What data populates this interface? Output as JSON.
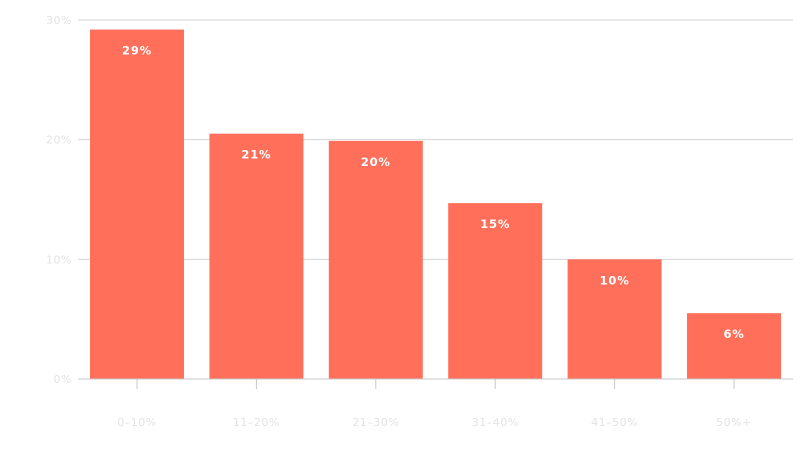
{
  "chart_data": {
    "type": "bar",
    "title": "",
    "xlabel": "",
    "ylabel": "",
    "categories": [
      "0–10%",
      "11–20%",
      "21–30%",
      "31–40%",
      "41–50%",
      "50%+"
    ],
    "values": [
      29.2,
      20.5,
      19.9,
      14.7,
      10.0,
      5.5
    ],
    "data_labels": [
      "29%",
      "21%",
      "20%",
      "15%",
      "10%",
      "6%"
    ],
    "ylim": [
      0,
      30
    ],
    "y_ticks": [
      0,
      10,
      20,
      30
    ],
    "y_tick_labels": [
      "0%",
      "10%",
      "20%",
      "30%"
    ],
    "grid": true,
    "legend": "none",
    "bar_color": "#ff6f59"
  }
}
